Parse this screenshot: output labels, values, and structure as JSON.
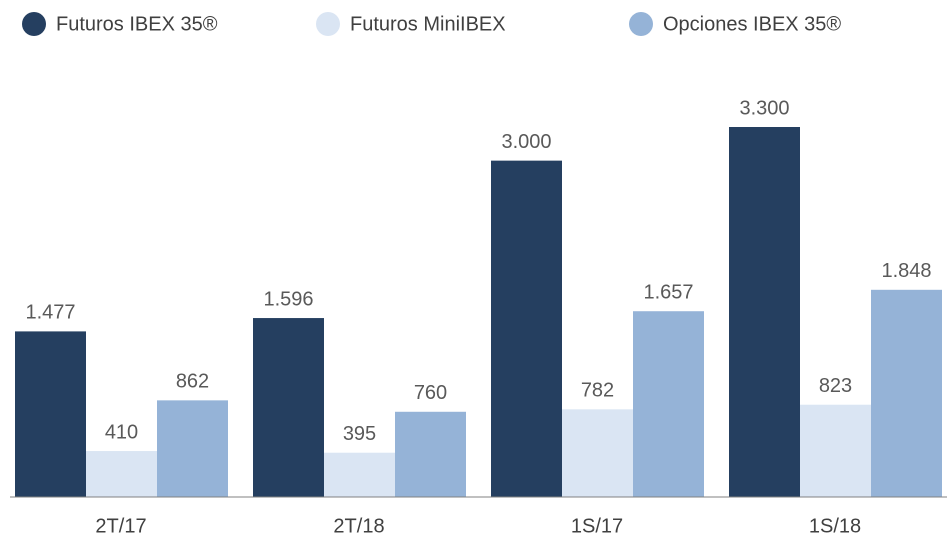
{
  "chart_data": {
    "type": "bar",
    "categories": [
      "2T/17",
      "2T/18",
      "1S/17",
      "1S/18"
    ],
    "series": [
      {
        "name": "Futuros IBEX 35®",
        "color": "#253f60",
        "values": [
          1477,
          1596,
          3000,
          3300
        ],
        "value_labels": [
          "1.477",
          "1.596",
          "3.000",
          "3.300"
        ]
      },
      {
        "name": "Futuros MiniIBEX",
        "color": "#dae5f3",
        "values": [
          410,
          395,
          782,
          823
        ]
      },
      {
        "name": "Opciones IBEX 35®",
        "color": "#95b3d7",
        "values": [
          862,
          760,
          1657,
          1848
        ],
        "value_labels": [
          "862",
          "760",
          "1.657",
          "1.848"
        ]
      }
    ],
    "legend": "top-left"
  }
}
